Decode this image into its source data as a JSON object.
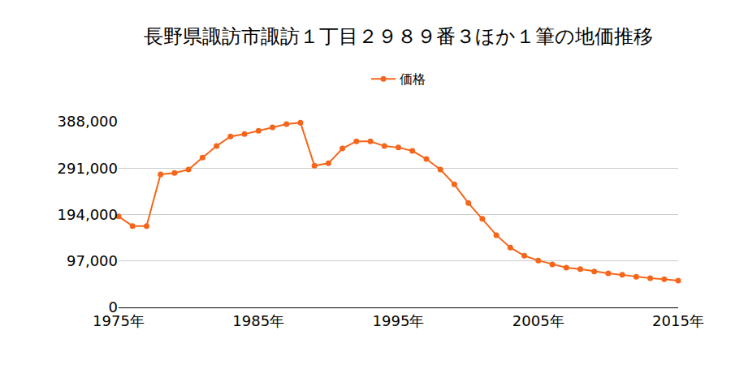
{
  "chart_data": {
    "type": "line",
    "title": "長野県諏訪市諏訪１丁目２９８９番３ほか１筆の地価推移",
    "x": [
      1975,
      1976,
      1977,
      1978,
      1979,
      1980,
      1981,
      1982,
      1983,
      1984,
      1985,
      1986,
      1987,
      1988,
      1989,
      1990,
      1991,
      1992,
      1993,
      1994,
      1995,
      1996,
      1997,
      1998,
      1999,
      2000,
      2001,
      2002,
      2003,
      2004,
      2005,
      2006,
      2007,
      2008,
      2009,
      2010,
      2011,
      2012,
      2013,
      2014,
      2015
    ],
    "series": [
      {
        "name": "価格",
        "color": "#f4661b",
        "marker": "circle",
        "values": [
          190000,
          170000,
          170000,
          278000,
          281000,
          288000,
          313000,
          337000,
          357000,
          362000,
          369000,
          376000,
          383000,
          386000,
          296000,
          301000,
          332000,
          347000,
          347000,
          337000,
          334000,
          327000,
          310000,
          288000,
          257000,
          218000,
          185000,
          151000,
          125000,
          108000,
          98000,
          90000,
          83000,
          80000,
          75000,
          71000,
          68000,
          64000,
          61000,
          59000,
          56000
        ]
      }
    ],
    "xlim": [
      1975,
      2015
    ],
    "xticks": [
      {
        "value": 1975,
        "label": "1975年"
      },
      {
        "value": 1985,
        "label": "1985年"
      },
      {
        "value": 1995,
        "label": "1995年"
      },
      {
        "value": 2005,
        "label": "2005年"
      },
      {
        "value": 2015,
        "label": "2015年"
      }
    ],
    "ylim": [
      0,
      388000
    ],
    "yticks": [
      0,
      {
        "value": 97000,
        "label": "97,000"
      },
      {
        "value": 194000,
        "label": "194,000"
      },
      {
        "value": 291000,
        "label": "291,000"
      },
      {
        "value": 388000,
        "label": "388,000"
      }
    ],
    "grid": "y",
    "legend": "top"
  }
}
